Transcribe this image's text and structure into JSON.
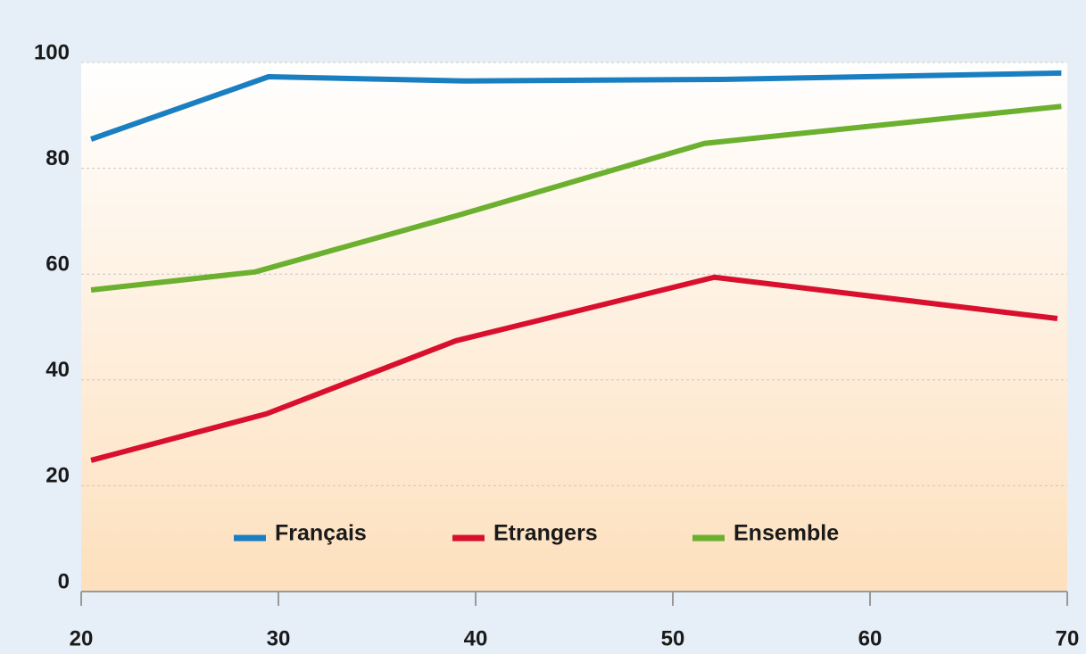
{
  "chart_data": {
    "type": "line",
    "xlim": [
      20,
      70
    ],
    "xticks": [
      20,
      30,
      40,
      50,
      60,
      70
    ],
    "ylim": [
      0,
      100
    ],
    "yticks": [
      0,
      20,
      40,
      60,
      80,
      100
    ],
    "grid": true,
    "legend": "bottom",
    "series": [
      {
        "name": "Français",
        "color": "#1a7fc1",
        "x": [
          20.5,
          29.5,
          39.5,
          52.5,
          69.7
        ],
        "values": [
          85.5,
          97.3,
          96.5,
          96.8,
          98
        ]
      },
      {
        "name": "Etrangers",
        "color": "#d8102e",
        "x": [
          20.5,
          29.4,
          39,
          52.1,
          69.5
        ],
        "values": [
          24.8,
          33.6,
          47.4,
          59.4,
          51.6
        ]
      },
      {
        "name": "Ensemble",
        "color": "#6bb02e",
        "x": [
          20.5,
          28.8,
          39,
          51.6,
          69.7
        ],
        "values": [
          57,
          60.4,
          71,
          84.7,
          91.7
        ]
      }
    ]
  }
}
